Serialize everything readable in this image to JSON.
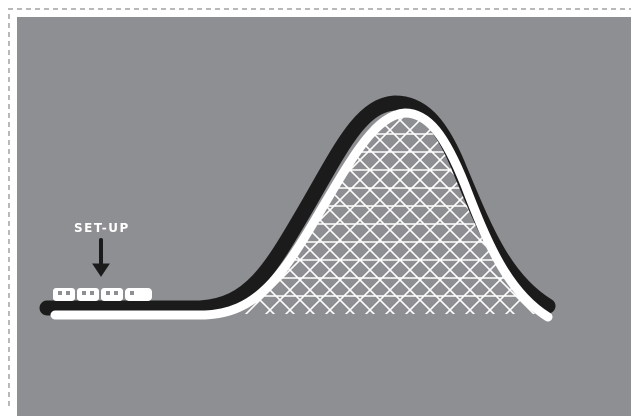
{
  "diagram": {
    "stage_label": "SET-UP",
    "colors": {
      "background": "#8e8f93",
      "track": "#ffffff",
      "shadow": "#1b1b1b",
      "border": "#b9b9b9"
    }
  }
}
